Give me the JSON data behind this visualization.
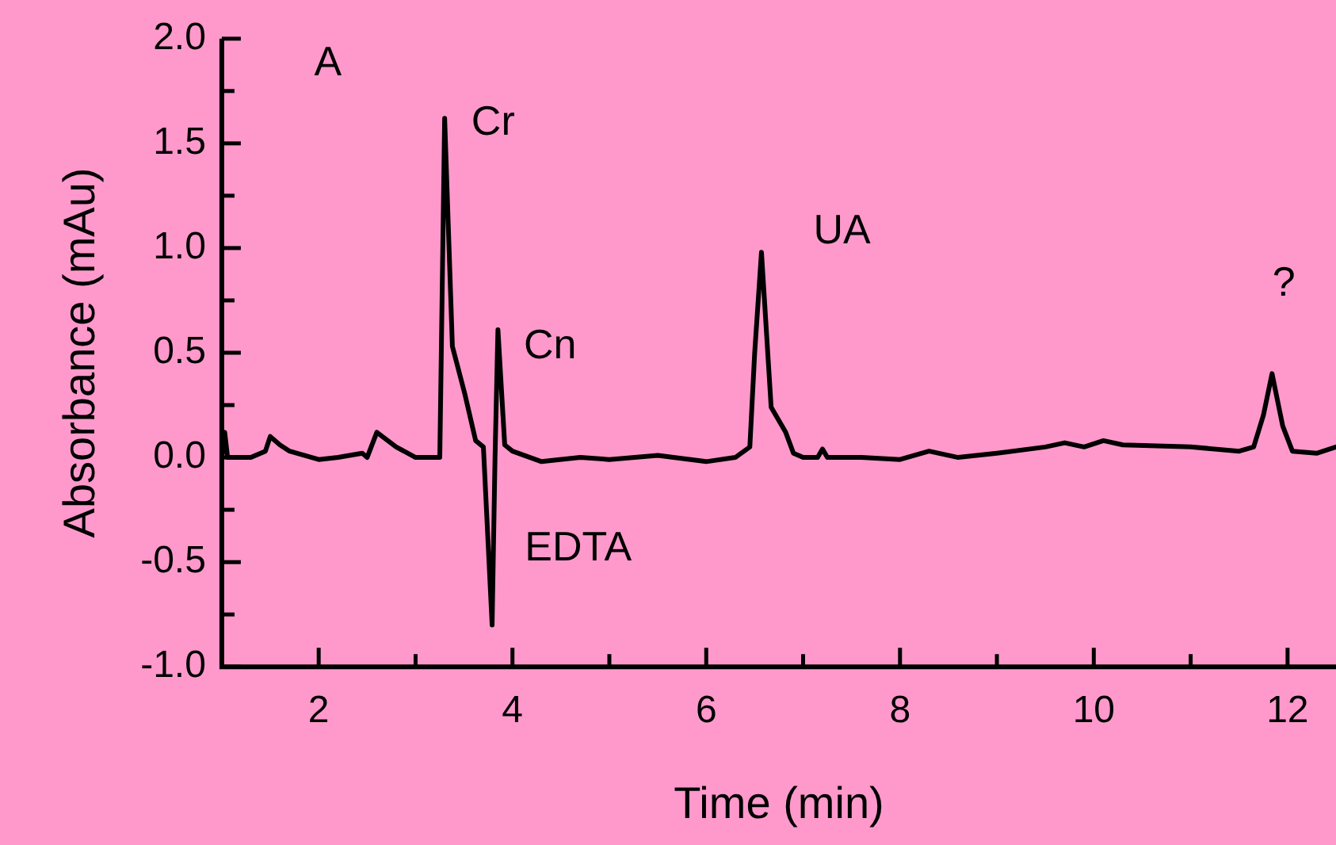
{
  "chart_data": {
    "type": "line",
    "xlabel": "Time (min)",
    "ylabel": "Absorbance (mAu)",
    "x": [
      1,
      1.03,
      1.06,
      1.1,
      1.3,
      1.45,
      1.5,
      1.6,
      1.7,
      2,
      2.2,
      2.45,
      2.5,
      2.6,
      2.8,
      3,
      3.25,
      3.3,
      3.38,
      3.51,
      3.62,
      3.7,
      3.79,
      3.82,
      3.85,
      3.92,
      4,
      4.3,
      4.7,
      5,
      5.5,
      6,
      6.3,
      6.45,
      6.5,
      6.57,
      6.67,
      6.82,
      6.9,
      7,
      7.15,
      7.2,
      7.25,
      7.6,
      8,
      8.3,
      8.6,
      9,
      9.5,
      9.7,
      9.9,
      10.1,
      10.3,
      11,
      11.5,
      11.65,
      11.75,
      11.84,
      11.95,
      12.05,
      12.3,
      12.5
    ],
    "values": [
      0.0,
      0.12,
      0.0,
      0.0,
      0.0,
      0.03,
      0.1,
      0.06,
      0.03,
      -0.01,
      0.0,
      0.02,
      0.0,
      0.12,
      0.05,
      0.0,
      0.0,
      1.62,
      0.53,
      0.3,
      0.08,
      0.05,
      -0.8,
      0.0,
      0.61,
      0.06,
      0.03,
      -0.02,
      0.0,
      -0.01,
      0.01,
      -0.02,
      0.0,
      0.05,
      0.5,
      0.98,
      0.24,
      0.12,
      0.02,
      0.0,
      0.0,
      0.04,
      0.0,
      0.0,
      -0.01,
      0.03,
      0.0,
      0.02,
      0.05,
      0.07,
      0.05,
      0.08,
      0.06,
      0.05,
      0.03,
      0.05,
      0.2,
      0.4,
      0.15,
      0.03,
      0.02,
      0.05
    ],
    "color": "#000000",
    "marker": "none",
    "line_style": "solid",
    "grid": false,
    "legend": false,
    "xlim": [
      1,
      12.5
    ],
    "xticks": [
      2,
      {
        "value": 3,
        "label": null
      },
      4,
      {
        "value": 5,
        "label": null
      },
      6,
      {
        "value": 7,
        "label": null
      },
      8,
      {
        "value": 9,
        "label": null
      },
      10,
      {
        "value": 11,
        "label": null
      },
      12
    ],
    "ylim": [
      -1,
      2
    ],
    "yticks": [
      {
        "value": -1,
        "label": "-1.0"
      },
      {
        "value": -0.75,
        "label": null
      },
      {
        "value": -0.5,
        "label": "-0.5"
      },
      {
        "value": -0.25,
        "label": null
      },
      {
        "value": 0,
        "label": "0.0"
      },
      {
        "value": 0.25,
        "label": null
      },
      {
        "value": 0.5,
        "label": "0.5"
      },
      {
        "value": 0.75,
        "label": null
      },
      {
        "value": 1,
        "label": "1.0"
      },
      {
        "value": 1.25,
        "label": null
      },
      {
        "value": 1.5,
        "label": "1.5"
      },
      {
        "value": 1.75,
        "label": null
      },
      {
        "value": 2,
        "label": "2.0"
      }
    ],
    "annotations": [
      "A",
      "Cr",
      "Cn",
      "EDTA",
      "UA",
      "?"
    ]
  }
}
